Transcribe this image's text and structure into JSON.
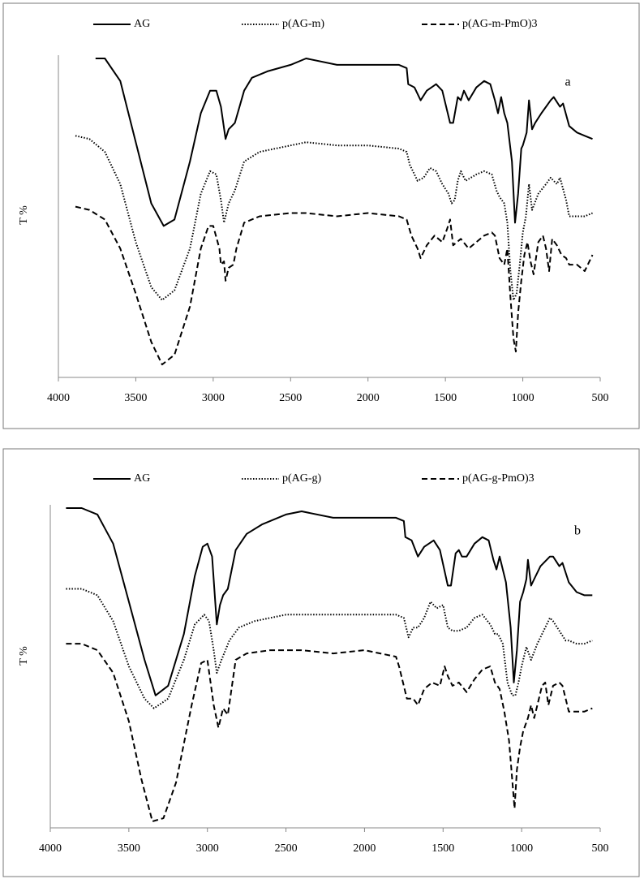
{
  "chart_data": [
    {
      "type": "line",
      "ylabel": "T %",
      "annotation": "a",
      "xlim": [
        4000,
        500
      ],
      "ylim": [
        0,
        100
      ],
      "xticks": [
        4000,
        3500,
        3000,
        2500,
        2000,
        1500,
        1000,
        500
      ],
      "series": [
        {
          "name": "AG",
          "color": "#000000",
          "style": "solid",
          "x": [
            3760,
            3700,
            3600,
            3500,
            3400,
            3320,
            3250,
            3150,
            3080,
            3020,
            2980,
            2950,
            2920,
            2900,
            2860,
            2800,
            2750,
            2650,
            2500,
            2400,
            2200,
            2000,
            1800,
            1750,
            1740,
            1700,
            1660,
            1620,
            1560,
            1520,
            1470,
            1450,
            1420,
            1400,
            1380,
            1350,
            1300,
            1250,
            1210,
            1180,
            1160,
            1140,
            1120,
            1100,
            1070,
            1050,
            1030,
            1010,
            1000,
            975,
            960,
            940,
            920,
            880,
            820,
            800,
            760,
            740,
            700,
            650,
            600,
            550
          ],
          "values": [
            99,
            99,
            92,
            73,
            54,
            47,
            49,
            67,
            82,
            89,
            89,
            84,
            74,
            77,
            79,
            89,
            93,
            95,
            97,
            99,
            97,
            97,
            97,
            96,
            91,
            90,
            86,
            89,
            91,
            89,
            79,
            79,
            87,
            86,
            89,
            86,
            90,
            92,
            91,
            86,
            82,
            87,
            82,
            79,
            67,
            48,
            57,
            71,
            72,
            76,
            86,
            77,
            79,
            82,
            86,
            87,
            84,
            85,
            78,
            76,
            75,
            74
          ]
        },
        {
          "name": "p(AG-m)",
          "color": "#000000",
          "style": "dotted",
          "x": [
            3890,
            3800,
            3700,
            3600,
            3500,
            3400,
            3330,
            3250,
            3150,
            3080,
            3020,
            2980,
            2950,
            2930,
            2900,
            2860,
            2800,
            2700,
            2500,
            2400,
            2200,
            2000,
            1800,
            1750,
            1730,
            1700,
            1680,
            1640,
            1600,
            1560,
            1520,
            1480,
            1460,
            1440,
            1420,
            1400,
            1370,
            1300,
            1250,
            1200,
            1170,
            1150,
            1120,
            1100,
            1080,
            1060,
            1040,
            1020,
            1000,
            980,
            960,
            940,
            900,
            850,
            820,
            780,
            760,
            720,
            700,
            650,
            600,
            550
          ],
          "values": [
            75,
            74,
            70,
            60,
            42,
            28,
            24,
            27,
            40,
            57,
            64,
            63,
            55,
            48,
            54,
            58,
            67,
            70,
            72,
            73,
            72,
            72,
            71,
            70,
            66,
            63,
            61,
            62,
            65,
            64,
            60,
            57,
            54,
            55,
            61,
            64,
            61,
            63,
            64,
            63,
            58,
            56,
            54,
            48,
            33,
            24,
            26,
            35,
            45,
            50,
            60,
            52,
            57,
            60,
            62,
            60,
            62,
            55,
            50,
            50,
            50,
            51
          ]
        },
        {
          "name": "p(AG-m-PmO)3",
          "color": "#000000",
          "style": "dashed",
          "x": [
            3890,
            3800,
            3700,
            3600,
            3500,
            3400,
            3330,
            3250,
            3150,
            3080,
            3030,
            3000,
            2960,
            2950,
            2930,
            2920,
            2900,
            2870,
            2850,
            2800,
            2700,
            2500,
            2400,
            2200,
            2000,
            1800,
            1750,
            1720,
            1680,
            1660,
            1620,
            1570,
            1520,
            1490,
            1470,
            1450,
            1400,
            1350,
            1300,
            1250,
            1200,
            1180,
            1150,
            1120,
            1100,
            1080,
            1060,
            1045,
            1030,
            1010,
            990,
            970,
            950,
            930,
            900,
            870,
            850,
            830,
            810,
            780,
            750,
            720,
            700,
            650,
            600,
            580,
            550
          ],
          "values": [
            53,
            52,
            49,
            40,
            26,
            11,
            4,
            7,
            22,
            40,
            47,
            47,
            40,
            35,
            36,
            30,
            34,
            35,
            40,
            48,
            50,
            51,
            51,
            50,
            51,
            50,
            49,
            44,
            40,
            37,
            41,
            44,
            42,
            46,
            49,
            41,
            43,
            40,
            42,
            44,
            45,
            44,
            37,
            35,
            40,
            25,
            12,
            8,
            20,
            30,
            38,
            42,
            36,
            32,
            42,
            44,
            40,
            33,
            43,
            41,
            38,
            37,
            35,
            35,
            33,
            35,
            38
          ]
        }
      ]
    },
    {
      "type": "line",
      "ylabel": "T %",
      "annotation": "b",
      "xlim": [
        4000,
        500
      ],
      "ylim": [
        0,
        100
      ],
      "xticks": [
        4000,
        3500,
        3000,
        2500,
        2000,
        1500,
        1000,
        500
      ],
      "series": [
        {
          "name": "AG",
          "color": "#000000",
          "style": "solid",
          "x": [
            3900,
            3800,
            3700,
            3600,
            3500,
            3400,
            3330,
            3250,
            3150,
            3080,
            3030,
            3000,
            2970,
            2940,
            2920,
            2900,
            2870,
            2820,
            2750,
            2650,
            2500,
            2400,
            2200,
            2000,
            1800,
            1750,
            1740,
            1700,
            1660,
            1620,
            1560,
            1520,
            1470,
            1450,
            1420,
            1400,
            1380,
            1350,
            1300,
            1250,
            1210,
            1180,
            1160,
            1140,
            1120,
            1100,
            1070,
            1050,
            1030,
            1010,
            990,
            970,
            960,
            940,
            920,
            880,
            820,
            800,
            760,
            740,
            700,
            650,
            600,
            550
          ],
          "values": [
            99,
            99,
            97,
            88,
            70,
            52,
            41,
            44,
            60,
            78,
            87,
            88,
            84,
            63,
            69,
            72,
            74,
            86,
            91,
            94,
            97,
            98,
            96,
            96,
            96,
            95,
            90,
            89,
            84,
            87,
            89,
            86,
            75,
            75,
            85,
            86,
            84,
            84,
            88,
            90,
            89,
            83,
            80,
            84,
            80,
            76,
            62,
            45,
            55,
            70,
            73,
            77,
            83,
            75,
            77,
            81,
            84,
            84,
            81,
            82,
            76,
            73,
            72,
            72
          ]
        },
        {
          "name": "p(AG-g)",
          "color": "#000000",
          "style": "dotted",
          "x": [
            3900,
            3800,
            3700,
            3600,
            3500,
            3400,
            3340,
            3250,
            3150,
            3080,
            3020,
            2990,
            2960,
            2940,
            2910,
            2860,
            2800,
            2700,
            2500,
            2400,
            2200,
            2000,
            1800,
            1750,
            1720,
            1690,
            1660,
            1620,
            1580,
            1540,
            1500,
            1470,
            1440,
            1400,
            1350,
            1300,
            1250,
            1200,
            1170,
            1150,
            1120,
            1090,
            1060,
            1040,
            1020,
            1000,
            970,
            940,
            900,
            850,
            820,
            800,
            760,
            720,
            700,
            650,
            600,
            550
          ],
          "values": [
            74,
            74,
            72,
            64,
            50,
            40,
            37,
            40,
            52,
            63,
            66,
            64,
            55,
            48,
            52,
            58,
            62,
            64,
            66,
            66,
            66,
            66,
            66,
            65,
            59,
            62,
            62,
            65,
            70,
            68,
            69,
            62,
            61,
            61,
            62,
            65,
            66,
            63,
            60,
            60,
            57,
            45,
            41,
            41,
            45,
            50,
            56,
            52,
            57,
            62,
            65,
            64,
            61,
            58,
            58,
            57,
            57,
            58
          ]
        },
        {
          "name": "p(AG-g-PmO)3",
          "color": "#000000",
          "style": "dashed",
          "x": [
            3900,
            3800,
            3700,
            3600,
            3500,
            3420,
            3350,
            3280,
            3200,
            3100,
            3040,
            3000,
            2980,
            2960,
            2930,
            2900,
            2870,
            2820,
            2750,
            2600,
            2400,
            2200,
            2000,
            1800,
            1780,
            1730,
            1690,
            1660,
            1620,
            1570,
            1520,
            1490,
            1470,
            1440,
            1400,
            1350,
            1300,
            1250,
            1200,
            1170,
            1140,
            1110,
            1080,
            1060,
            1045,
            1030,
            1010,
            990,
            960,
            940,
            920,
            900,
            870,
            850,
            830,
            800,
            760,
            740,
            700,
            650,
            600,
            550
          ],
          "values": [
            57,
            57,
            55,
            48,
            33,
            15,
            2,
            3,
            14,
            38,
            51,
            52,
            45,
            38,
            31,
            37,
            35,
            52,
            54,
            55,
            55,
            54,
            55,
            53,
            50,
            40,
            40,
            38,
            43,
            45,
            44,
            50,
            47,
            44,
            45,
            42,
            46,
            49,
            50,
            45,
            43,
            36,
            27,
            15,
            6,
            18,
            25,
            30,
            34,
            38,
            34,
            38,
            44,
            45,
            38,
            44,
            45,
            44,
            36,
            36,
            36,
            37
          ]
        }
      ]
    }
  ]
}
